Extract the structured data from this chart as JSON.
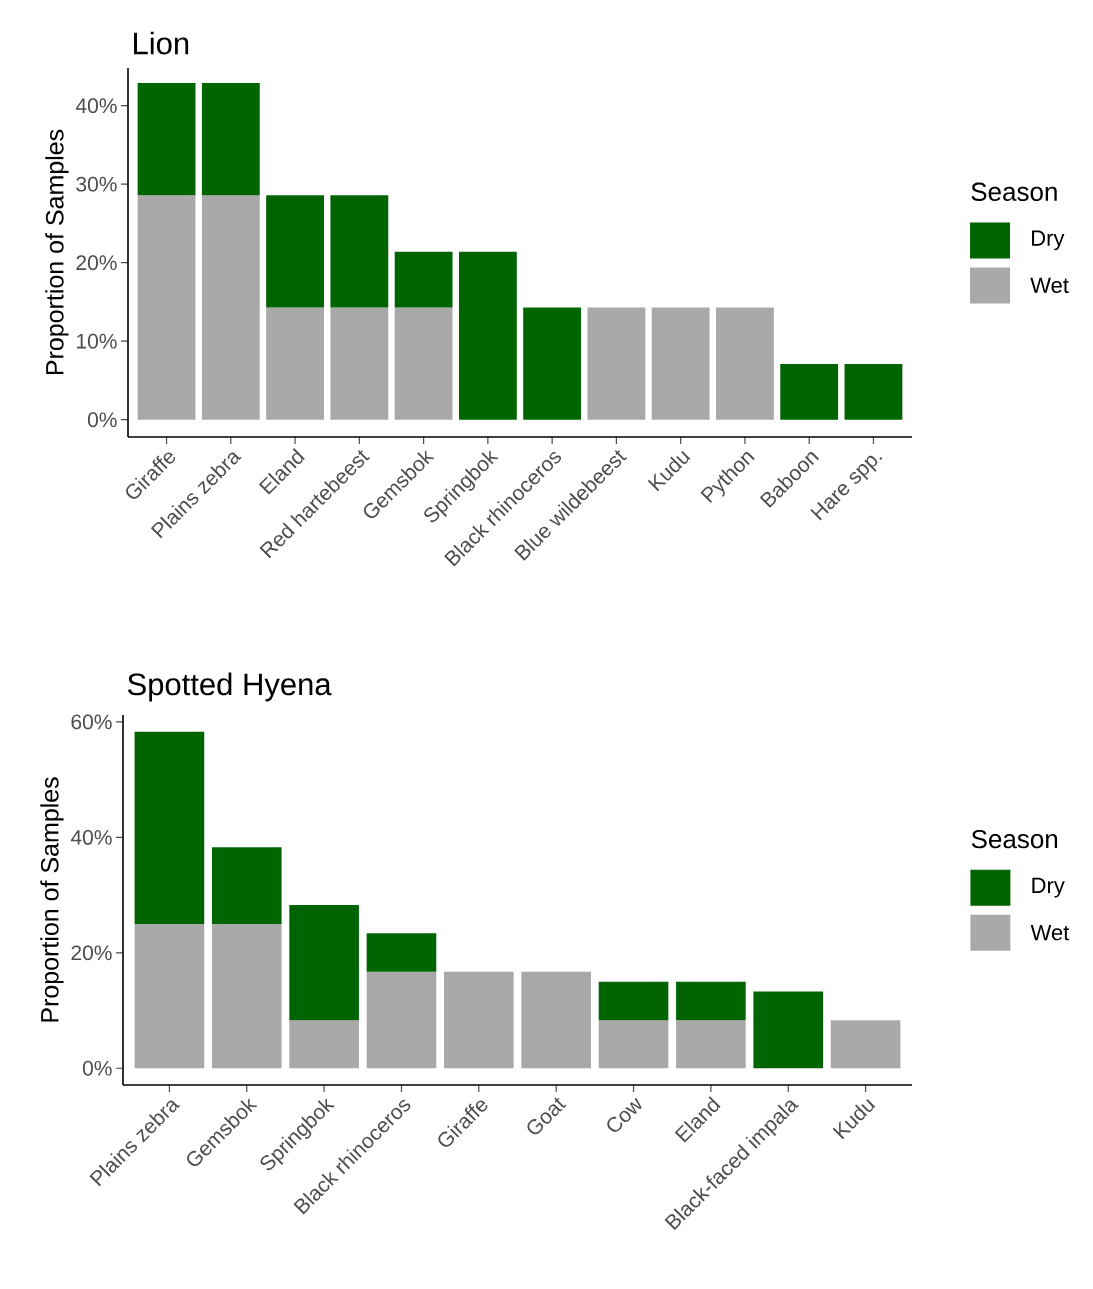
{
  "chart_data": [
    {
      "type": "bar",
      "stacked": true,
      "title": "Lion",
      "ylabel": "Proportion of Samples",
      "legend_title": "Season",
      "legend": "right",
      "categories": [
        "Giraffe",
        "Plains zebra",
        "Eland",
        "Red hartebeest",
        "Gemsbok",
        "Springbok",
        "Black rhinoceros",
        "Blue wildebeest",
        "Kudu",
        "Python",
        "Baboon",
        "Hare spp."
      ],
      "series": [
        {
          "name": "Wet",
          "color": "#a9a9a9",
          "values": [
            28.6,
            28.6,
            14.3,
            14.3,
            14.3,
            null,
            null,
            14.3,
            14.3,
            14.3,
            null,
            null
          ]
        },
        {
          "name": "Dry",
          "color": "#006400",
          "values": [
            14.3,
            14.3,
            14.3,
            14.3,
            7.1,
            21.4,
            14.3,
            null,
            null,
            null,
            7.1,
            7.1
          ]
        }
      ],
      "ylim": [
        -2.2,
        44.8
      ],
      "yticks": [
        {
          "value": 0,
          "label": "0%"
        },
        {
          "value": 10,
          "label": "10%"
        },
        {
          "value": 20,
          "label": "20%"
        },
        {
          "value": 30,
          "label": "30%"
        },
        {
          "value": 40,
          "label": "40%"
        }
      ]
    },
    {
      "type": "bar",
      "stacked": true,
      "title": "Spotted Hyena",
      "ylabel": "Proportion of Samples",
      "legend_title": "Season",
      "legend": "right",
      "categories": [
        "Plains zebra",
        "Gemsbok",
        "Springbok",
        "Black rhinoceros",
        "Giraffe",
        "Goat",
        "Cow",
        "Eland",
        "Black-faced impala",
        "Kudu"
      ],
      "series": [
        {
          "name": "Wet",
          "color": "#a9a9a9",
          "values": [
            25,
            25,
            8.3,
            16.7,
            16.7,
            16.7,
            8.3,
            8.3,
            null,
            8.3
          ]
        },
        {
          "name": "Dry",
          "color": "#006400",
          "values": [
            33.3,
            13.3,
            20,
            6.7,
            null,
            null,
            6.7,
            6.7,
            13.3,
            null
          ]
        }
      ],
      "ylim": [
        -2.9,
        61.2
      ],
      "yticks": [
        {
          "value": 0,
          "label": "0%"
        },
        {
          "value": 20,
          "label": "20%"
        },
        {
          "value": 40,
          "label": "40%"
        },
        {
          "value": 60,
          "label": "60%"
        }
      ]
    }
  ]
}
